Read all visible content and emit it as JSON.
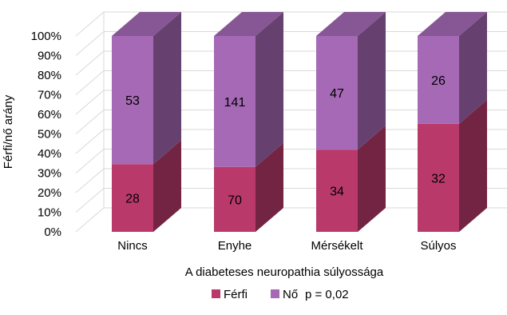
{
  "chart_data": {
    "type": "bar",
    "stacked": "percent",
    "style": "3d",
    "title": "",
    "categories": [
      "Nincs",
      "Enyhe",
      "Mérsékelt",
      "Súlyos"
    ],
    "series": [
      {
        "name": "Férfi",
        "values": [
          28,
          70,
          34,
          32
        ],
        "color": "#b93a6a"
      },
      {
        "name": "Nő",
        "values": [
          53,
          141,
          47,
          26
        ],
        "color": "#a569b5"
      }
    ],
    "xlabel": "A diabeteses neuropathia súlyossága",
    "ylabel": "Férfi/nő arány",
    "ylim": [
      0,
      100
    ],
    "yticks": [
      "0%",
      "10%",
      "20%",
      "30%",
      "40%",
      "50%",
      "60%",
      "70%",
      "80%",
      "90%",
      "100%"
    ],
    "grid": true,
    "legend_position": "bottom",
    "annotation": "p = 0,02"
  }
}
